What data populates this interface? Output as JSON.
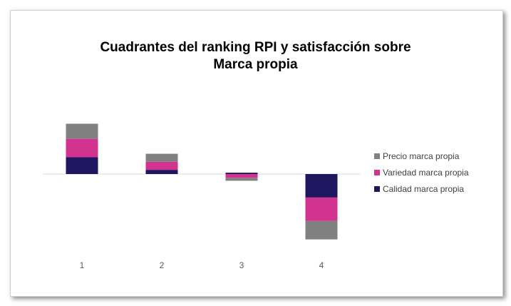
{
  "chart_data": {
    "type": "stacked_bar",
    "title_lines": [
      "Cuadrantes del ranking RPI y satisfacción sobre",
      "Marca propia"
    ],
    "categories": [
      "1",
      "2",
      "3",
      "4"
    ],
    "series": [
      {
        "name": "Calidad marca propia",
        "color": "#1f1660",
        "values": [
          1.0,
          0.25,
          0.08,
          -1.4
        ]
      },
      {
        "name": "Variedad marca propia",
        "color": "#d1338f",
        "values": [
          1.1,
          0.48,
          -0.22,
          -1.4
        ]
      },
      {
        "name": "Precio marca propia",
        "color": "#808080",
        "values": [
          0.9,
          0.48,
          -0.18,
          -1.1
        ]
      }
    ],
    "ylim": [
      -4.0,
      3.0
    ],
    "legend_position": "right"
  }
}
